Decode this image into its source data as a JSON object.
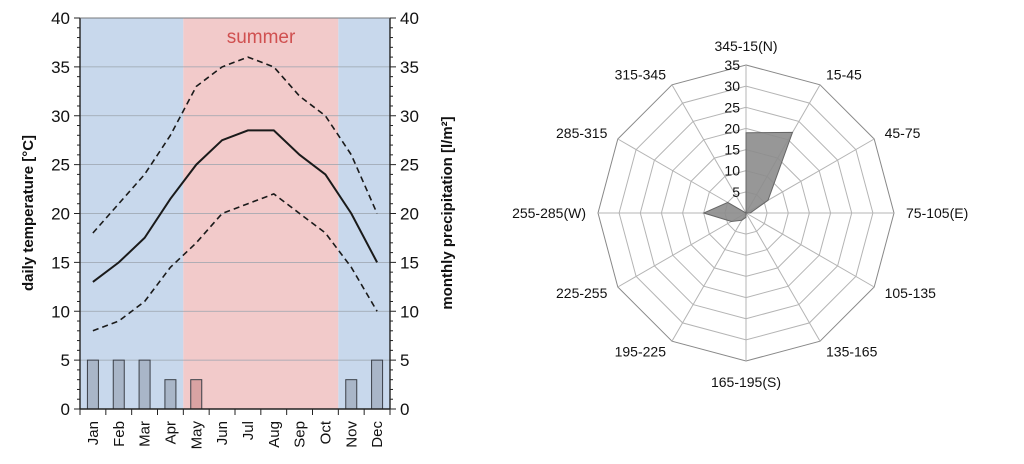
{
  "chart_data": [
    {
      "type": "line",
      "season_label": "summer",
      "ylabel_left": "daily temperature [°C]",
      "ylabel_right": "monthly precipitation [l/m²]",
      "ylim": [
        0,
        40
      ],
      "yticks": [
        0,
        5,
        10,
        15,
        20,
        25,
        30,
        35,
        40
      ],
      "categories": [
        "Jan",
        "Feb",
        "Mar",
        "Apr",
        "May",
        "Jun",
        "Jul",
        "Aug",
        "Sep",
        "Oct",
        "Nov",
        "Dec"
      ],
      "series": [
        {
          "style": "dashed",
          "values": [
            18,
            21,
            24,
            28,
            33,
            35,
            36,
            35,
            32,
            30,
            26,
            20
          ]
        },
        {
          "style": "solid",
          "values": [
            13,
            15,
            17.5,
            21.5,
            25,
            27.5,
            28.5,
            28.5,
            26,
            24,
            20,
            15
          ]
        },
        {
          "style": "dashed",
          "values": [
            8,
            9,
            11,
            14.5,
            17,
            20,
            21,
            22,
            20,
            18,
            14.5,
            10
          ]
        }
      ],
      "precipitation": [
        5,
        5,
        5,
        3,
        3,
        0,
        0,
        0,
        0,
        0,
        3,
        5
      ],
      "shading": {
        "summer_color": "#f2caca",
        "winter_color": "#c8d8ec",
        "summer_months": [
          "May",
          "Jun",
          "Jul",
          "Aug",
          "Sep",
          "Oct"
        ]
      },
      "line_color": "#1a1a1a",
      "bar_color": "#a9b6c8",
      "summer_bar_color": "#d9a3a3"
    },
    {
      "type": "radar",
      "categories": [
        "345-15(N)",
        "15-45",
        "45-75",
        "75-105(E)",
        "105-135",
        "135-165",
        "165-195(S)",
        "195-225",
        "225-255",
        "255-285(W)",
        "285-315",
        "315-345"
      ],
      "rticks": [
        0,
        5,
        10,
        15,
        20,
        25,
        30,
        35
      ],
      "rmax": 35,
      "values": [
        19,
        22,
        6,
        1,
        0,
        0,
        1,
        2,
        4,
        10,
        5,
        0
      ],
      "fill_color": "#8c8c8c"
    }
  ]
}
